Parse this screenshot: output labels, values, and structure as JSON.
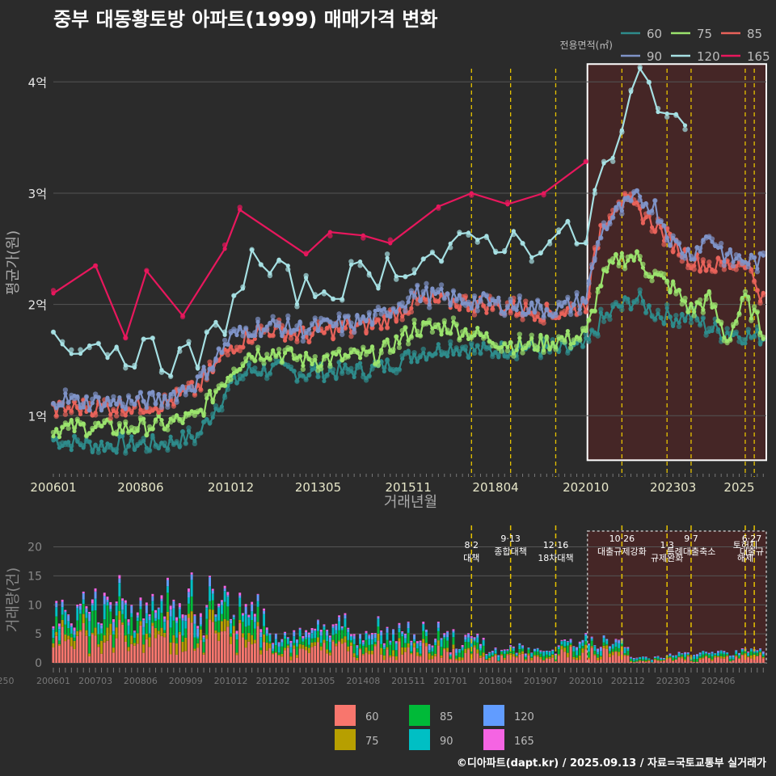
{
  "title": "중부 대동황토방 아파트(1999) 매매가격 변화",
  "credit": "©디아파트(dapt.kr) / 2025.09.13 / 자료=국토교통부 실거래가",
  "colors": {
    "background": "#2b2b2b",
    "grid": "#555555",
    "highlight_fill": "#4a2626",
    "highlight_border": "#ffffff",
    "policy_line": "#e6c200",
    "line_60": "#2e8b8b",
    "line_75": "#9be36d",
    "line_85": "#e8625a",
    "line_90": "#7f93c7",
    "line_120": "#a6e0e3",
    "line_165": "#e8175d",
    "bar_60": "#f8766d",
    "bar_75": "#b79f00",
    "bar_85": "#00ba38",
    "bar_90": "#00bfc4",
    "bar_120": "#619cff",
    "bar_165": "#f564e3"
  },
  "chart_data": [
    {
      "type": "line",
      "title": "중부 대동황토방 아파트(1999) 매매가격 변화",
      "xlabel": "거래년월",
      "ylabel": "평균가(원)",
      "legend_title": "전용면적(㎡)",
      "legend_position": "top-right",
      "x_range": [
        "2006-01",
        "2025-09"
      ],
      "x_ticks": [
        "200601",
        "200806",
        "201012",
        "201305",
        "201511",
        "201804",
        "202010",
        "202303",
        "2025"
      ],
      "y_ticks": [
        {
          "value": 1,
          "label": "1억"
        },
        {
          "value": 2,
          "label": "2억"
        },
        {
          "value": 3,
          "label": "3억"
        },
        {
          "value": 4,
          "label": "4억"
        }
      ],
      "ylim": [
        0.45,
        4.3
      ],
      "grid": true,
      "highlight_range": [
        "2020-10",
        "2025-09"
      ],
      "policy_dates": [
        "2017-08",
        "2018-09",
        "2019-12",
        "2021-10",
        "2023-01",
        "2023-09",
        "2025-03",
        "2025-06"
      ],
      "series": [
        {
          "name": "60",
          "x": [
            "2006-01",
            "2007-01",
            "2008-01",
            "2009-01",
            "2010-01",
            "2010-12",
            "2011-06",
            "2012-01",
            "2013-01",
            "2014-01",
            "2015-01",
            "2016-01",
            "2017-01",
            "2018-01",
            "2019-01",
            "2020-01",
            "2020-10",
            "2021-03",
            "2021-09",
            "2022-03",
            "2022-09",
            "2023-03",
            "2023-09",
            "2024-03",
            "2024-09",
            "2025-03",
            "2025-09"
          ],
          "y": [
            0.78,
            0.74,
            0.74,
            0.75,
            0.82,
            1.28,
            1.4,
            1.42,
            1.38,
            1.4,
            1.42,
            1.55,
            1.62,
            1.58,
            1.62,
            1.58,
            1.62,
            1.85,
            1.98,
            2.05,
            1.92,
            1.88,
            1.9,
            1.78,
            1.75,
            1.72,
            1.7
          ]
        },
        {
          "name": "75",
          "x": [
            "2006-01",
            "2007-01",
            "2008-01",
            "2009-01",
            "2010-01",
            "2010-12",
            "2011-06",
            "2012-01",
            "2013-01",
            "2014-01",
            "2015-01",
            "2016-01",
            "2017-01",
            "2018-01",
            "2019-01",
            "2020-01",
            "2020-10",
            "2021-03",
            "2021-09",
            "2022-03",
            "2022-09",
            "2023-03",
            "2023-09",
            "2024-03",
            "2024-09",
            "2025-03",
            "2025-09"
          ],
          "y": [
            0.88,
            0.9,
            0.88,
            0.92,
            1.0,
            1.4,
            1.55,
            1.58,
            1.5,
            1.52,
            1.55,
            1.78,
            1.8,
            1.7,
            1.62,
            1.68,
            1.72,
            2.2,
            2.42,
            2.42,
            2.25,
            2.15,
            1.95,
            2.05,
            1.68,
            2.05,
            1.75
          ]
        },
        {
          "name": "85",
          "x": [
            "2006-01",
            "2007-01",
            "2008-01",
            "2009-01",
            "2010-01",
            "2010-12",
            "2011-06",
            "2012-01",
            "2013-01",
            "2014-01",
            "2015-01",
            "2016-01",
            "2017-01",
            "2018-01",
            "2019-01",
            "2020-01",
            "2020-10",
            "2021-03",
            "2021-09",
            "2022-03",
            "2022-09",
            "2023-03",
            "2023-09",
            "2024-03",
            "2024-09",
            "2025-03",
            "2025-09"
          ],
          "y": [
            1.05,
            1.08,
            1.08,
            1.1,
            1.25,
            1.62,
            1.72,
            1.78,
            1.72,
            1.78,
            1.82,
            2.02,
            2.02,
            2.0,
            1.95,
            1.92,
            2.0,
            2.7,
            2.95,
            2.85,
            2.72,
            2.55,
            2.4,
            2.35,
            2.35,
            2.4,
            2.05
          ]
        },
        {
          "name": "90",
          "x": [
            "2006-01",
            "2007-01",
            "2008-01",
            "2009-01",
            "2010-01",
            "2010-12",
            "2011-06",
            "2012-01",
            "2013-01",
            "2014-01",
            "2015-01",
            "2016-01",
            "2017-01",
            "2018-01",
            "2019-01",
            "2020-01",
            "2020-10",
            "2021-03",
            "2021-09",
            "2022-03",
            "2022-09",
            "2023-03",
            "2023-09",
            "2024-03",
            "2024-09",
            "2025-03",
            "2025-09"
          ],
          "y": [
            1.15,
            1.12,
            1.12,
            1.15,
            1.3,
            1.7,
            1.78,
            1.8,
            1.78,
            1.82,
            1.88,
            2.1,
            2.05,
            2.02,
            1.98,
            1.95,
            2.05,
            2.65,
            2.85,
            2.95,
            2.88,
            2.55,
            2.45,
            2.62,
            2.42,
            2.4,
            2.38
          ]
        },
        {
          "name": "120",
          "x": [
            "2006-01",
            "2007-01",
            "2008-01",
            "2009-01",
            "2010-01",
            "2010-12",
            "2011-06",
            "2012-01",
            "2013-01",
            "2014-01",
            "2015-01",
            "2016-01",
            "2017-01",
            "2018-01",
            "2019-01",
            "2020-01",
            "2020-10",
            "2021-03",
            "2021-09",
            "2022-03",
            "2022-09",
            "2023-03",
            "2023-09"
          ],
          "y": [
            1.75,
            1.65,
            1.6,
            1.52,
            1.5,
            1.95,
            2.4,
            2.3,
            2.1,
            2.2,
            2.3,
            2.4,
            2.45,
            2.6,
            2.55,
            2.6,
            2.6,
            3.2,
            3.35,
            4.08,
            3.9,
            3.75,
            3.3
          ]
        },
        {
          "name": "165",
          "x": [
            "2006-01",
            "2007-03",
            "2008-01",
            "2008-08",
            "2009-08",
            "2010-10",
            "2011-03",
            "2013-01",
            "2013-09",
            "2014-08",
            "2015-05",
            "2016-09",
            "2017-08",
            "2018-08",
            "2019-08",
            "2020-10"
          ],
          "y": [
            2.1,
            2.35,
            1.7,
            2.3,
            1.9,
            2.5,
            2.85,
            2.45,
            2.65,
            2.62,
            2.55,
            2.88,
            3.0,
            2.9,
            3.0,
            3.28
          ]
        }
      ]
    },
    {
      "type": "bar",
      "ylabel": "거래량(건)",
      "x_ticks": [
        "200601",
        "200703",
        "200806",
        "200909",
        "201012",
        "201202",
        "201305",
        "201408",
        "201511",
        "201701",
        "201804",
        "201907",
        "202010",
        "202112",
        "202303",
        "202406",
        "20250"
      ],
      "y_ticks": [
        0,
        5,
        10,
        15,
        20
      ],
      "ylim": [
        0,
        23
      ],
      "stacked": true,
      "legend_position": "bottom",
      "highlight_range": [
        "2020-10",
        "2025-09"
      ],
      "annotations": [
        {
          "date": "2017-08",
          "label": "8·2 대책"
        },
        {
          "date": "2018-09",
          "label": "9·13 종합대책"
        },
        {
          "date": "2019-12",
          "label": "12·16 18차대책"
        },
        {
          "date": "2021-10",
          "label": "10·26 대출규제강화"
        },
        {
          "date": "2023-01",
          "label": "1·3 규제완화"
        },
        {
          "date": "2023-09",
          "label": "9·7 특례대출축소"
        },
        {
          "date": "2025-03",
          "label": "토허제 해제"
        },
        {
          "date": "2025-06",
          "label": "6·27 대출규"
        }
      ],
      "series": [
        {
          "name": "60",
          "values_by_year": {
            "2006": 4.0,
            "2007": 4.5,
            "2008": 4.0,
            "2009": 4.5,
            "2010": 4.2,
            "2011": 4.0,
            "2012": 1.8,
            "2013": 2.2,
            "2014": 2.0,
            "2015": 2.2,
            "2016": 2.0,
            "2017": 1.5,
            "2018": 0.9,
            "2019": 0.9,
            "2020": 1.6,
            "2021": 1.4,
            "2022": 0.3,
            "2023": 0.6,
            "2024": 0.6,
            "2025": 0.8
          }
        },
        {
          "name": "75",
          "values_by_year": {
            "2006": 0.9,
            "2007": 1.3,
            "2008": 1.1,
            "2009": 1.3,
            "2010": 1.2,
            "2011": 1.0,
            "2012": 0.6,
            "2013": 0.7,
            "2014": 0.6,
            "2015": 0.7,
            "2016": 0.6,
            "2017": 0.5,
            "2018": 0.3,
            "2019": 0.3,
            "2020": 0.5,
            "2021": 0.4,
            "2022": 0.1,
            "2023": 0.2,
            "2024": 0.2,
            "2025": 0.3
          }
        },
        {
          "name": "85",
          "values_by_year": {
            "2006": 1.6,
            "2007": 2.2,
            "2008": 1.8,
            "2009": 2.0,
            "2010": 1.8,
            "2011": 1.6,
            "2012": 0.9,
            "2013": 1.1,
            "2014": 1.0,
            "2015": 1.1,
            "2016": 1.0,
            "2017": 0.7,
            "2018": 0.4,
            "2019": 0.4,
            "2020": 0.7,
            "2021": 0.6,
            "2022": 0.2,
            "2023": 0.3,
            "2024": 0.3,
            "2025": 0.4
          }
        },
        {
          "name": "90",
          "values_by_year": {
            "2006": 1.2,
            "2007": 1.5,
            "2008": 1.4,
            "2009": 1.6,
            "2010": 1.5,
            "2011": 1.4,
            "2012": 0.8,
            "2013": 0.9,
            "2014": 0.8,
            "2015": 0.9,
            "2016": 0.8,
            "2017": 0.6,
            "2018": 0.4,
            "2019": 0.4,
            "2020": 0.6,
            "2021": 0.5,
            "2022": 0.2,
            "2023": 0.3,
            "2024": 0.3,
            "2025": 0.3
          }
        },
        {
          "name": "120",
          "values_by_year": {
            "2006": 0.7,
            "2007": 0.9,
            "2008": 0.8,
            "2009": 0.9,
            "2010": 0.9,
            "2011": 0.8,
            "2012": 0.5,
            "2013": 0.6,
            "2014": 0.5,
            "2015": 0.6,
            "2016": 0.5,
            "2017": 0.4,
            "2018": 0.2,
            "2019": 0.2,
            "2020": 0.3,
            "2021": 0.3,
            "2022": 0.1,
            "2023": 0.2,
            "2024": 0.2,
            "2025": 0.2
          }
        },
        {
          "name": "165",
          "values_by_year": {
            "2006": 0.3,
            "2007": 0.4,
            "2008": 0.3,
            "2009": 0.4,
            "2010": 0.4,
            "2011": 0.3,
            "2012": 0.2,
            "2013": 0.2,
            "2014": 0.2,
            "2015": 0.2,
            "2016": 0.2,
            "2017": 0.2,
            "2018": 0.1,
            "2019": 0.1,
            "2020": 0.1,
            "2021": 0.1,
            "2022": 0.05,
            "2023": 0.05,
            "2024": 0.05,
            "2025": 0.1
          }
        }
      ]
    }
  ]
}
